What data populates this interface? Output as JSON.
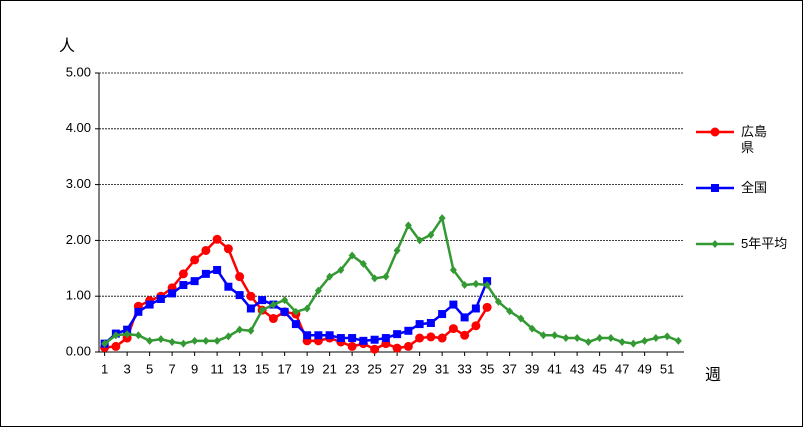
{
  "chart_data": {
    "type": "line",
    "y_label": "人",
    "x_label": "週",
    "x": [
      1,
      2,
      3,
      4,
      5,
      6,
      7,
      8,
      9,
      10,
      11,
      12,
      13,
      14,
      15,
      16,
      17,
      18,
      19,
      20,
      21,
      22,
      23,
      24,
      25,
      26,
      27,
      28,
      29,
      30,
      31,
      32,
      33,
      34,
      35,
      36,
      37,
      38,
      39,
      40,
      41,
      42,
      43,
      44,
      45,
      46,
      47,
      48,
      49,
      50,
      51,
      52
    ],
    "xlim": [
      0.5,
      52.5
    ],
    "xticks": [
      1,
      3,
      5,
      7,
      9,
      11,
      13,
      15,
      17,
      19,
      21,
      23,
      25,
      27,
      29,
      31,
      33,
      35,
      37,
      39,
      41,
      43,
      45,
      47,
      49,
      51
    ],
    "ylim": [
      0,
      5
    ],
    "yticks": [
      {
        "value": 0,
        "label": "0.00"
      },
      {
        "value": 1,
        "label": "1.00"
      },
      {
        "value": 2,
        "label": "2.00"
      },
      {
        "value": 3,
        "label": "3.00"
      },
      {
        "value": 4,
        "label": "4.00"
      },
      {
        "value": 5,
        "label": "5.00"
      }
    ],
    "grid": true,
    "legend": "right",
    "series": [
      {
        "name": "広島県",
        "color": "#ff0000",
        "marker": "circle",
        "values": [
          0.08,
          0.1,
          0.25,
          0.82,
          0.92,
          1.0,
          1.15,
          1.4,
          1.65,
          1.82,
          2.02,
          1.85,
          1.35,
          1.0,
          0.75,
          0.6,
          0.72,
          0.68,
          0.2,
          0.2,
          0.25,
          0.18,
          0.1,
          0.15,
          0.05,
          0.15,
          0.07,
          0.1,
          0.25,
          0.27,
          0.25,
          0.42,
          0.3,
          0.47,
          0.8,
          null,
          null,
          null,
          null,
          null,
          null,
          null,
          null,
          null,
          null,
          null,
          null,
          null,
          null,
          null,
          null,
          null
        ]
      },
      {
        "name": "全国",
        "color": "#0000ff",
        "marker": "square",
        "values": [
          0.15,
          0.33,
          0.4,
          0.72,
          0.85,
          0.95,
          1.05,
          1.2,
          1.27,
          1.4,
          1.47,
          1.17,
          1.02,
          0.78,
          0.93,
          0.85,
          0.72,
          0.5,
          0.3,
          0.3,
          0.3,
          0.25,
          0.25,
          0.2,
          0.22,
          0.25,
          0.32,
          0.38,
          0.5,
          0.52,
          0.68,
          0.85,
          0.62,
          0.78,
          1.27,
          null,
          null,
          null,
          null,
          null,
          null,
          null,
          null,
          null,
          null,
          null,
          null,
          null,
          null,
          null,
          null,
          null
        ]
      },
      {
        "name": "5年平均",
        "color": "#339933",
        "marker": "diamond",
        "values": [
          0.15,
          0.3,
          0.32,
          0.3,
          0.2,
          0.23,
          0.18,
          0.15,
          0.2,
          0.2,
          0.2,
          0.28,
          0.4,
          0.38,
          0.75,
          0.85,
          0.93,
          0.72,
          0.78,
          1.1,
          1.35,
          1.47,
          1.73,
          1.58,
          1.32,
          1.35,
          1.82,
          2.27,
          2.0,
          2.1,
          2.4,
          1.47,
          1.2,
          1.22,
          1.2,
          0.9,
          0.73,
          0.6,
          0.42,
          0.3,
          0.3,
          0.25,
          0.25,
          0.18,
          0.25,
          0.25,
          0.18,
          0.15,
          0.2,
          0.25,
          0.28,
          0.2
        ]
      }
    ]
  }
}
